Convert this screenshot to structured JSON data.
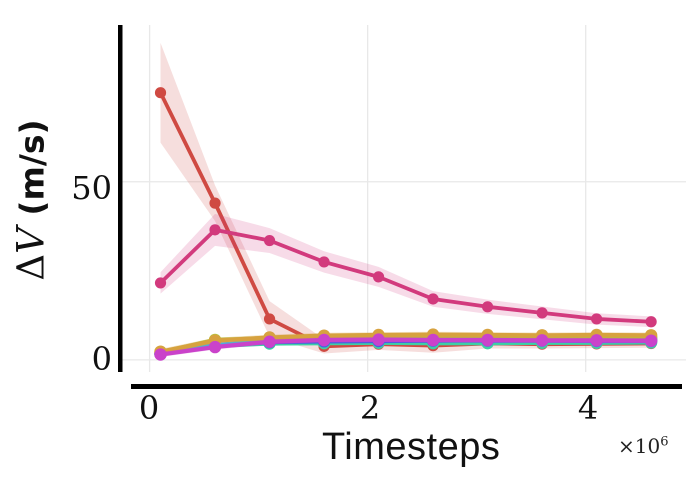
{
  "figure": {
    "ylabel_delta": "Δ",
    "ylabel_v": "V",
    "ylabel_units": " (m/s)",
    "xlabel": "Timesteps",
    "offset_base": "×10",
    "offset_exp": "6",
    "ytick_labels": {
      "zero": "0",
      "fifty": "50"
    },
    "xtick_labels": {
      "zero": "0",
      "two": "2",
      "four": "4"
    }
  },
  "colors": {
    "axis": "#000000",
    "grid": "#e8e8e8",
    "background": "#ffffff"
  },
  "chart_data": {
    "type": "line",
    "title": "",
    "xlabel": "Timesteps",
    "ylabel": "ΔV (m/s)",
    "x_offset_text": "×10^6",
    "grid": true,
    "legend": false,
    "xlim": [
      -290000,
      4920000
    ],
    "ylim": [
      -3.4,
      94
    ],
    "xticks": [
      0,
      2000000,
      4000000
    ],
    "yticks": [
      0,
      50
    ],
    "x": [
      100000,
      600000,
      1100000,
      1600000,
      2100000,
      2600000,
      3100000,
      3600000,
      4100000,
      4600000
    ],
    "series": [
      {
        "name": "series-red",
        "color": "#cf4a42",
        "values": [
          75,
          44,
          11.5,
          3.8,
          4.4,
          4.0,
          4.6,
          4.4,
          4.5,
          4.6
        ],
        "err": [
          14,
          5,
          5,
          2,
          1.6,
          2,
          1.4,
          1.2,
          1.2,
          1.2
        ]
      },
      {
        "name": "series-pink",
        "color": "#d23a7d",
        "values": [
          21.6,
          36.5,
          33.5,
          27.5,
          23.3,
          17.1,
          14.9,
          13.2,
          11.5,
          10.7
        ],
        "err": [
          3,
          4.5,
          3.5,
          3,
          2.8,
          2.2,
          2,
          1.8,
          1.6,
          1.5
        ]
      },
      {
        "name": "series-teal",
        "color": "#3ecfa4",
        "values": [
          1.7,
          3.9,
          4.6,
          4.7,
          4.8,
          4.7,
          4.7,
          4.8,
          4.8,
          4.9
        ],
        "err": [
          0.6,
          0.6,
          0.6,
          0.6,
          0.6,
          0.6,
          0.6,
          0.6,
          0.6,
          0.6
        ]
      },
      {
        "name": "series-blue",
        "color": "#4a5ce0",
        "values": [
          1.6,
          3.9,
          5.0,
          5.2,
          5.3,
          5.4,
          5.5,
          5.6,
          5.7,
          5.7
        ],
        "err": [
          0.6,
          0.6,
          0.6,
          0.6,
          0.6,
          0.6,
          0.6,
          0.6,
          0.6,
          0.6
        ]
      },
      {
        "name": "series-purple",
        "color": "#8353e2",
        "values": [
          1.7,
          4.2,
          5.2,
          5.5,
          5.6,
          5.5,
          5.4,
          5.4,
          5.3,
          5.3
        ],
        "err": [
          0.6,
          0.6,
          0.6,
          0.6,
          0.6,
          0.6,
          0.6,
          0.6,
          0.6,
          0.6
        ]
      },
      {
        "name": "series-cyan",
        "color": "#45b4e0",
        "values": [
          1.8,
          4.1,
          5.3,
          5.8,
          6.0,
          6.1,
          6.0,
          6.1,
          6.2,
          6.2
        ],
        "err": [
          0.6,
          0.6,
          0.6,
          0.6,
          0.6,
          0.6,
          0.6,
          0.6,
          0.6,
          0.6
        ]
      },
      {
        "name": "series-yellow-green",
        "color": "#b5c43c",
        "values": [
          2.1,
          5.6,
          6.1,
          6.4,
          6.4,
          6.3,
          6.2,
          6.3,
          6.2,
          6.2
        ],
        "err": [
          0.7,
          0.7,
          0.7,
          0.7,
          0.7,
          0.7,
          0.7,
          0.7,
          0.7,
          0.7
        ]
      },
      {
        "name": "series-orange",
        "color": "#d7a23f",
        "values": [
          2.3,
          5.4,
          6.3,
          6.8,
          7.0,
          7.1,
          7.0,
          6.9,
          7.0,
          6.9
        ],
        "err": [
          0.8,
          0.8,
          0.8,
          0.8,
          0.8,
          0.8,
          0.8,
          0.8,
          0.8,
          0.8
        ]
      },
      {
        "name": "series-magenta",
        "color": "#ca42ca",
        "values": [
          1.5,
          3.6,
          5.1,
          5.6,
          5.7,
          5.6,
          5.6,
          5.5,
          5.5,
          5.4
        ],
        "err": [
          0.7,
          0.7,
          0.7,
          0.7,
          0.7,
          0.7,
          0.7,
          0.7,
          0.7,
          0.7
        ]
      }
    ],
    "draw_order": [
      "series-red",
      "series-teal",
      "series-blue",
      "series-purple",
      "series-cyan",
      "series-yellow-green",
      "series-orange",
      "series-magenta",
      "series-pink"
    ]
  }
}
